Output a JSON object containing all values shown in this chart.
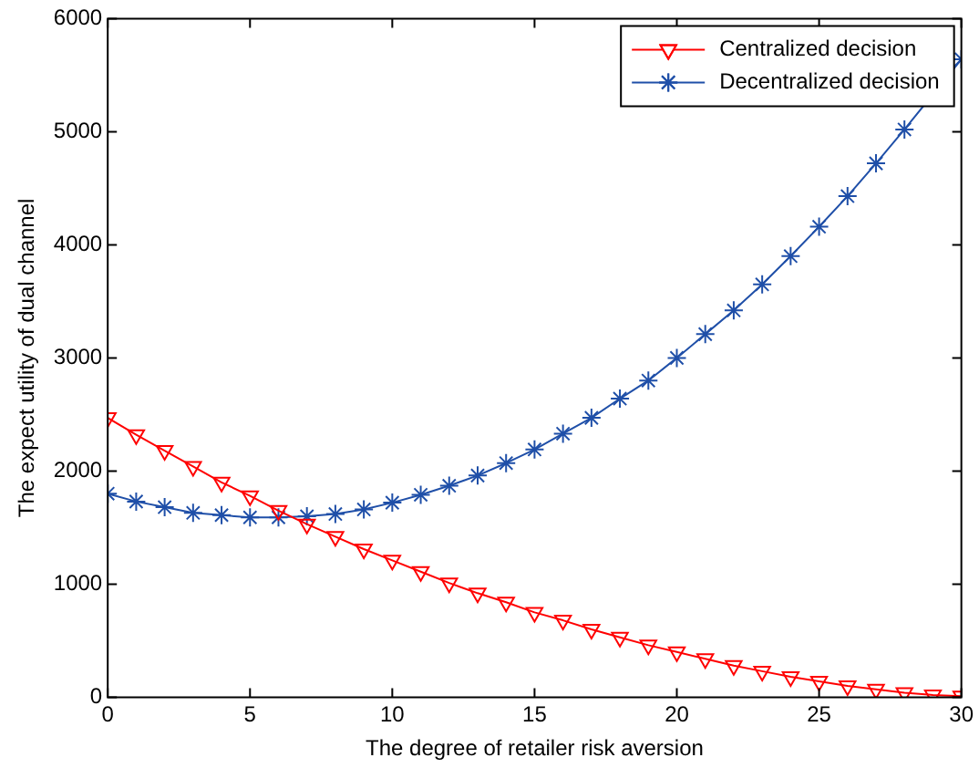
{
  "chart_data": {
    "type": "line",
    "xlabel": "The degree of retailer risk aversion",
    "ylabel": "The expect utility of dual channel",
    "x": [
      0,
      1,
      2,
      3,
      4,
      5,
      6,
      7,
      8,
      9,
      10,
      11,
      12,
      13,
      14,
      15,
      16,
      17,
      18,
      19,
      20,
      21,
      22,
      23,
      24,
      25,
      26,
      27,
      28,
      29,
      30
    ],
    "series": [
      {
        "name": "Centralized decision",
        "color": "#ff0000",
        "marker": "triangle",
        "values": [
          2470,
          2320,
          2180,
          2040,
          1900,
          1780,
          1650,
          1530,
          1420,
          1310,
          1210,
          1110,
          1010,
          920,
          840,
          750,
          680,
          600,
          530,
          460,
          400,
          340,
          280,
          230,
          180,
          140,
          100,
          70,
          40,
          20,
          10
        ]
      },
      {
        "name": "Decentralized decision",
        "color": "#1f4fa8",
        "marker": "cross",
        "values": [
          1800,
          1730,
          1680,
          1630,
          1610,
          1590,
          1590,
          1600,
          1620,
          1660,
          1720,
          1790,
          1870,
          1960,
          2070,
          2190,
          2330,
          2470,
          2640,
          2800,
          3000,
          3210,
          3420,
          3650,
          3900,
          4160,
          4430,
          4720,
          5020,
          null,
          5640
        ]
      }
    ],
    "xlim": [
      0,
      30
    ],
    "xticks": [
      0,
      5,
      10,
      15,
      20,
      25,
      30
    ],
    "ylim": [
      0,
      6000
    ],
    "yticks": [
      0,
      1000,
      2000,
      3000,
      4000,
      5000,
      6000
    ],
    "grid": false,
    "legend": "top right",
    "line_style": "solid"
  }
}
